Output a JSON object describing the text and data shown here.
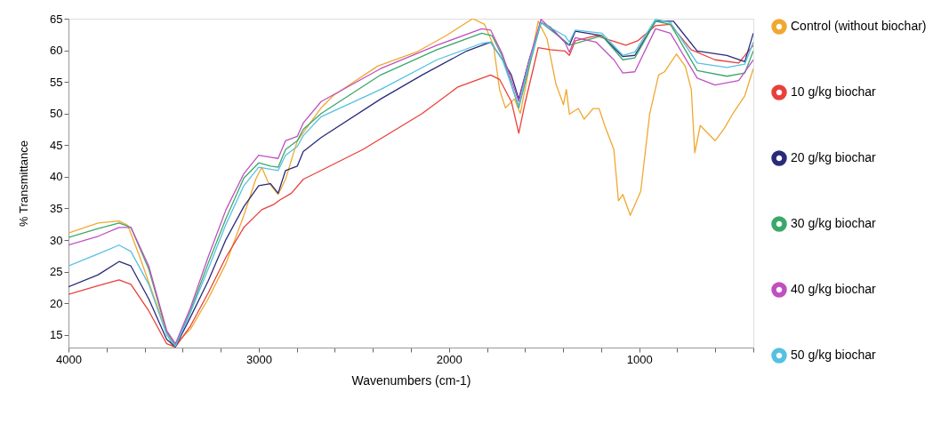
{
  "chart_data": {
    "type": "line",
    "xlabel": "Wavenumbers (cm-1)",
    "ylabel": "% Transmittance",
    "xlim": [
      4000,
      400
    ],
    "ylim": [
      13,
      65
    ],
    "xticks": [
      4000,
      {
        "value": 3800,
        "label": null
      },
      {
        "value": 3600,
        "label": null
      },
      {
        "value": 3400,
        "label": null
      },
      {
        "value": 3200,
        "label": null
      },
      3000,
      {
        "value": 2800,
        "label": null
      },
      {
        "value": 2600,
        "label": null
      },
      {
        "value": 2400,
        "label": null
      },
      {
        "value": 2200,
        "label": null
      },
      2000,
      {
        "value": 1800,
        "label": null
      },
      {
        "value": 1600,
        "label": null
      },
      {
        "value": 1400,
        "label": null
      },
      {
        "value": 1200,
        "label": null
      },
      1000,
      {
        "value": 800,
        "label": null
      },
      {
        "value": 600,
        "label": null
      },
      {
        "value": 400,
        "label": null
      }
    ],
    "yticks": [
      15,
      20,
      25,
      30,
      35,
      40,
      45,
      50,
      55,
      60,
      65
    ],
    "legend": "right",
    "grid": false,
    "series": [
      {
        "name": "Control (without biochar)",
        "color": "#f0a830",
        "x": [
          4000,
          3844,
          3734,
          3688,
          3625,
          3547,
          3453,
          3359,
          3266,
          3172,
          3078,
          3016,
          2984,
          2953,
          2898,
          2859,
          2797,
          2672,
          2609,
          2375,
          2172,
          2016,
          1875,
          1813,
          1766,
          1734,
          1703,
          1656,
          1625,
          1531,
          1484,
          1438,
          1398,
          1383,
          1367,
          1320,
          1289,
          1242,
          1211,
          1180,
          1133,
          1109,
          1086,
          1047,
          992,
          945,
          898,
          867,
          804,
          758,
          726,
          708,
          679,
          601,
          554,
          507,
          445,
          400
        ],
        "values": [
          31.1,
          32.7,
          33.0,
          32.3,
          27.3,
          20.7,
          13.1,
          15.9,
          20.7,
          26.3,
          33.9,
          39.6,
          41.5,
          39.3,
          37.2,
          39.6,
          45.7,
          50.9,
          52.8,
          57.5,
          59.7,
          62.3,
          65.0,
          64.1,
          60.8,
          53.8,
          50.9,
          52.3,
          50.0,
          64.6,
          61.8,
          54.7,
          51.4,
          53.8,
          49.9,
          50.8,
          49.1,
          50.8,
          50.8,
          48.0,
          44.3,
          36.2,
          37.2,
          33.9,
          37.7,
          49.9,
          56.1,
          56.6,
          59.4,
          57.5,
          53.8,
          43.8,
          48.1,
          45.7,
          47.6,
          50.0,
          52.8,
          57.1
        ]
      },
      {
        "name": "10 g/kg biochar",
        "color": "#e8403a",
        "x": [
          4000,
          3844,
          3734,
          3672,
          3578,
          3484,
          3438,
          3359,
          3266,
          3172,
          3078,
          2984,
          2922,
          2891,
          2828,
          2766,
          2672,
          2453,
          2141,
          1953,
          1781,
          1734,
          1672,
          1633,
          1602,
          1531,
          1469,
          1391,
          1367,
          1336,
          1227,
          1070,
          1008,
          914,
          836,
          727,
          602,
          477,
          400
        ],
        "values": [
          21.4,
          22.8,
          23.7,
          23.0,
          18.8,
          13.6,
          13.1,
          16.4,
          21.6,
          27.3,
          32.0,
          34.8,
          35.6,
          36.3,
          37.4,
          39.6,
          41.0,
          44.3,
          50.0,
          54.2,
          56.1,
          55.4,
          51.9,
          46.9,
          51.4,
          60.4,
          60.1,
          59.9,
          59.2,
          61.5,
          62.3,
          60.8,
          61.5,
          63.9,
          64.1,
          60.1,
          58.5,
          58.0,
          60.8
        ]
      },
      {
        "name": "20 g/kg biochar",
        "color": "#2a2a7a",
        "x": [
          4000,
          3844,
          3734,
          3672,
          3578,
          3484,
          3438,
          3359,
          3266,
          3172,
          3078,
          3000,
          2938,
          2898,
          2859,
          2797,
          2766,
          2672,
          2359,
          2141,
          1906,
          1781,
          1719,
          1672,
          1633,
          1578,
          1516,
          1469,
          1391,
          1367,
          1336,
          1195,
          1086,
          1023,
          914,
          820,
          695,
          539,
          445,
          400
        ],
        "values": [
          22.6,
          24.5,
          26.6,
          25.9,
          20.7,
          14.3,
          13.1,
          17.8,
          23.5,
          30.1,
          35.3,
          38.6,
          38.9,
          37.4,
          41.0,
          41.7,
          44.0,
          46.2,
          52.3,
          56.1,
          59.9,
          61.3,
          58.5,
          56.1,
          52.3,
          58.5,
          64.4,
          63.7,
          61.3,
          60.8,
          63.0,
          62.3,
          59.0,
          59.2,
          64.6,
          64.6,
          59.9,
          59.2,
          58.2,
          62.7
        ]
      },
      {
        "name": "30 g/kg biochar",
        "color": "#3aa86a",
        "x": [
          4000,
          3844,
          3734,
          3672,
          3578,
          3484,
          3438,
          3359,
          3266,
          3172,
          3078,
          3000,
          2938,
          2898,
          2859,
          2797,
          2766,
          2672,
          2359,
          2063,
          1828,
          1773,
          1719,
          1633,
          1578,
          1516,
          1391,
          1367,
          1195,
          1086,
          1023,
          914,
          836,
          695,
          539,
          445,
          400
        ],
        "values": [
          30.4,
          31.8,
          32.7,
          32.0,
          25.4,
          15.5,
          13.3,
          18.8,
          26.3,
          33.4,
          39.8,
          42.2,
          41.7,
          41.5,
          44.3,
          45.7,
          47.5,
          50.0,
          56.1,
          60.1,
          62.7,
          62.3,
          59.0,
          50.9,
          57.5,
          64.4,
          61.5,
          60.8,
          62.3,
          58.5,
          58.8,
          64.6,
          64.1,
          56.8,
          55.9,
          56.4,
          59.9
        ]
      },
      {
        "name": "40 g/kg biochar",
        "color": "#c050c0",
        "x": [
          4000,
          3844,
          3734,
          3672,
          3578,
          3484,
          3438,
          3359,
          3266,
          3172,
          3078,
          3000,
          2938,
          2898,
          2859,
          2797,
          2766,
          2672,
          2359,
          2063,
          1828,
          1781,
          1719,
          1633,
          1578,
          1516,
          1391,
          1367,
          1336,
          1227,
          1133,
          1086,
          1023,
          914,
          836,
          695,
          602,
          477,
          400
        ],
        "values": [
          29.2,
          30.6,
          32.0,
          32.0,
          25.9,
          15.7,
          13.6,
          19.3,
          27.3,
          34.8,
          40.5,
          43.4,
          43.1,
          42.9,
          45.7,
          46.4,
          48.5,
          51.9,
          57.1,
          60.8,
          63.4,
          63.2,
          59.4,
          51.9,
          58.5,
          64.9,
          61.3,
          59.7,
          62.0,
          61.3,
          58.5,
          56.4,
          56.6,
          63.4,
          62.7,
          55.6,
          54.5,
          55.2,
          58.5
        ]
      },
      {
        "name": "50 g/kg biochar",
        "color": "#55c1e0",
        "x": [
          4000,
          3844,
          3734,
          3672,
          3578,
          3484,
          3438,
          3359,
          3266,
          3172,
          3078,
          3000,
          2938,
          2898,
          2859,
          2797,
          2766,
          2672,
          2359,
          2063,
          1828,
          1781,
          1719,
          1633,
          1578,
          1516,
          1391,
          1367,
          1336,
          1195,
          1086,
          1023,
          914,
          836,
          695,
          539,
          445,
          400
        ],
        "values": [
          25.9,
          27.8,
          29.2,
          28.2,
          23.0,
          15.0,
          13.2,
          18.5,
          25.4,
          32.5,
          38.6,
          41.5,
          41.2,
          41.0,
          43.4,
          44.8,
          46.5,
          49.5,
          53.8,
          58.5,
          61.1,
          61.3,
          58.5,
          51.2,
          58.0,
          64.4,
          62.3,
          61.3,
          63.2,
          62.7,
          59.2,
          59.7,
          64.9,
          64.4,
          58.0,
          57.3,
          57.8,
          61.3
        ]
      }
    ]
  }
}
